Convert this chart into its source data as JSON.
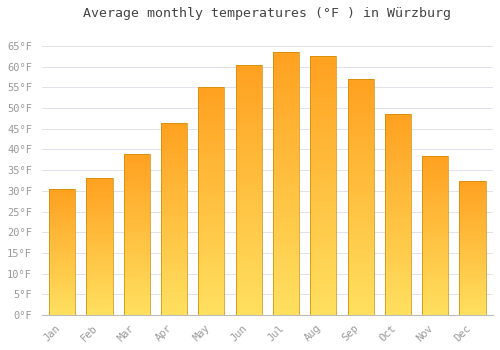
{
  "title": "Average monthly temperatures (°F ) in Würzburg",
  "months": [
    "Jan",
    "Feb",
    "Mar",
    "Apr",
    "May",
    "Jun",
    "Jul",
    "Aug",
    "Sep",
    "Oct",
    "Nov",
    "Dec"
  ],
  "values": [
    30.5,
    33.0,
    39.0,
    46.5,
    55.0,
    60.5,
    63.5,
    62.5,
    57.0,
    48.5,
    38.5,
    32.5
  ],
  "bar_color_bottom": "#FFE060",
  "bar_color_top": "#FFA020",
  "bar_edge_color": "#CC8800",
  "ylim": [
    0,
    70
  ],
  "yticks": [
    0,
    5,
    10,
    15,
    20,
    25,
    30,
    35,
    40,
    45,
    50,
    55,
    60,
    65
  ],
  "ytick_labels": [
    "0°F",
    "5°F",
    "10°F",
    "15°F",
    "20°F",
    "25°F",
    "30°F",
    "35°F",
    "40°F",
    "45°F",
    "50°F",
    "55°F",
    "60°F",
    "65°F"
  ],
  "background_color": "#ffffff",
  "grid_color": "#e0e0ee",
  "title_fontsize": 9.5,
  "tick_fontsize": 7.5,
  "tick_color": "#999999",
  "font_family": "monospace",
  "bar_width": 0.7,
  "gradient_steps": 60
}
